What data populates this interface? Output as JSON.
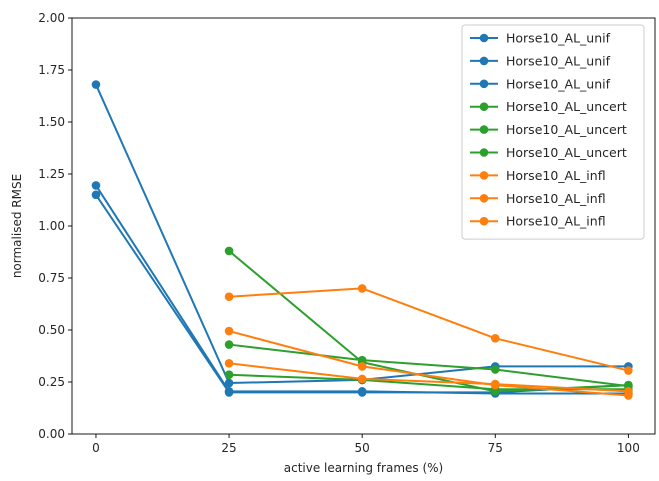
{
  "chart_data": {
    "type": "line",
    "xlabel": "active learning frames (%)",
    "ylabel": "normalised RMSE",
    "x": [
      0,
      25,
      50,
      75,
      100
    ],
    "xticks": [
      "0",
      "25",
      "50",
      "75",
      "100"
    ],
    "yticks": [
      "0.00",
      "0.25",
      "0.50",
      "0.75",
      "1.00",
      "1.25",
      "1.50",
      "1.75",
      "2.00"
    ],
    "xlim": [
      -4.5,
      105
    ],
    "ylim": [
      0,
      2.0
    ],
    "legend_position": "top-right",
    "grid": false,
    "colors": {
      "unif": "#1f77b4",
      "uncert": "#2ca02c",
      "infl": "#ff7f0e"
    },
    "series": [
      {
        "name": "Horse10_AL_unif",
        "group": "unif",
        "values": [
          1.68,
          0.245,
          0.26,
          0.325,
          0.325
        ]
      },
      {
        "name": "Horse10_AL_unif",
        "group": "unif",
        "values": [
          1.195,
          0.205,
          0.205,
          0.195,
          0.195
        ]
      },
      {
        "name": "Horse10_AL_unif",
        "group": "unif",
        "values": [
          1.15,
          0.2,
          0.2,
          0.2,
          0.235
        ]
      },
      {
        "name": "Horse10_AL_uncert",
        "group": "uncert",
        "values": [
          null,
          0.88,
          0.345,
          0.205,
          0.235
        ]
      },
      {
        "name": "Horse10_AL_uncert",
        "group": "uncert",
        "values": [
          null,
          0.43,
          0.355,
          0.31,
          0.23
        ]
      },
      {
        "name": "Horse10_AL_uncert",
        "group": "uncert",
        "values": [
          null,
          0.285,
          0.26,
          0.215,
          0.215
        ]
      },
      {
        "name": "Horse10_AL_infl",
        "group": "infl",
        "values": [
          null,
          0.66,
          0.7,
          0.46,
          0.305
        ]
      },
      {
        "name": "Horse10_AL_infl",
        "group": "infl",
        "values": [
          null,
          0.495,
          0.325,
          0.235,
          0.185
        ]
      },
      {
        "name": "Horse10_AL_infl",
        "group": "infl",
        "values": [
          null,
          0.34,
          0.265,
          0.24,
          0.205
        ]
      }
    ]
  }
}
